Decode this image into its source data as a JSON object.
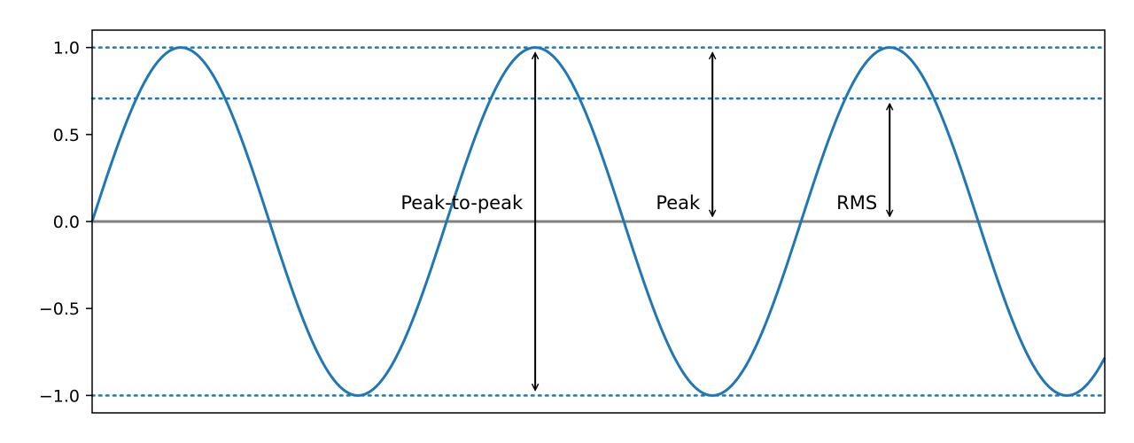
{
  "chart_data": {
    "type": "line",
    "title": "",
    "xlabel": "",
    "ylabel": "",
    "xlim": [
      0,
      17.95
    ],
    "ylim": [
      -1.1,
      1.1
    ],
    "x_ticks_shown": false,
    "y_ticks": [
      {
        "value": 1.0,
        "label": "1.0"
      },
      {
        "value": 0.5,
        "label": "0.5"
      },
      {
        "value": 0.0,
        "label": "0.0"
      },
      {
        "value": -0.5,
        "label": "−0.5"
      },
      {
        "value": -1.0,
        "label": "−1.0"
      }
    ],
    "grid": false,
    "series": [
      {
        "function": "sin",
        "amplitude": 1.0,
        "x_start": 0,
        "x_end": 17.95,
        "color": "#1f77b4"
      }
    ],
    "reference_lines": [
      {
        "kind": "horizontal",
        "y": 1.0,
        "style": "dotted",
        "color": "#1f77b4"
      },
      {
        "kind": "horizontal",
        "y": 0.7071,
        "style": "dotted",
        "color": "#1f77b4"
      },
      {
        "kind": "horizontal",
        "y": -1.0,
        "style": "dotted",
        "color": "#1f77b4"
      },
      {
        "kind": "horizontal",
        "y": 0.0,
        "style": "solid",
        "color": "#808080"
      }
    ],
    "annotations": [
      {
        "text": "Peak-to-peak",
        "arrow_x": 7.854,
        "y_from": -1.0,
        "y_to": 1.0
      },
      {
        "text": "Peak",
        "arrow_x": 10.996,
        "y_from": 0.0,
        "y_to": 1.0
      },
      {
        "text": "RMS",
        "arrow_x": 14.137,
        "y_from": 0.0,
        "y_to": 0.7071
      }
    ]
  },
  "colors": {
    "series": "#1f77b4",
    "zero_line": "#808080",
    "arrow": "#000000",
    "axes": "#000000"
  }
}
